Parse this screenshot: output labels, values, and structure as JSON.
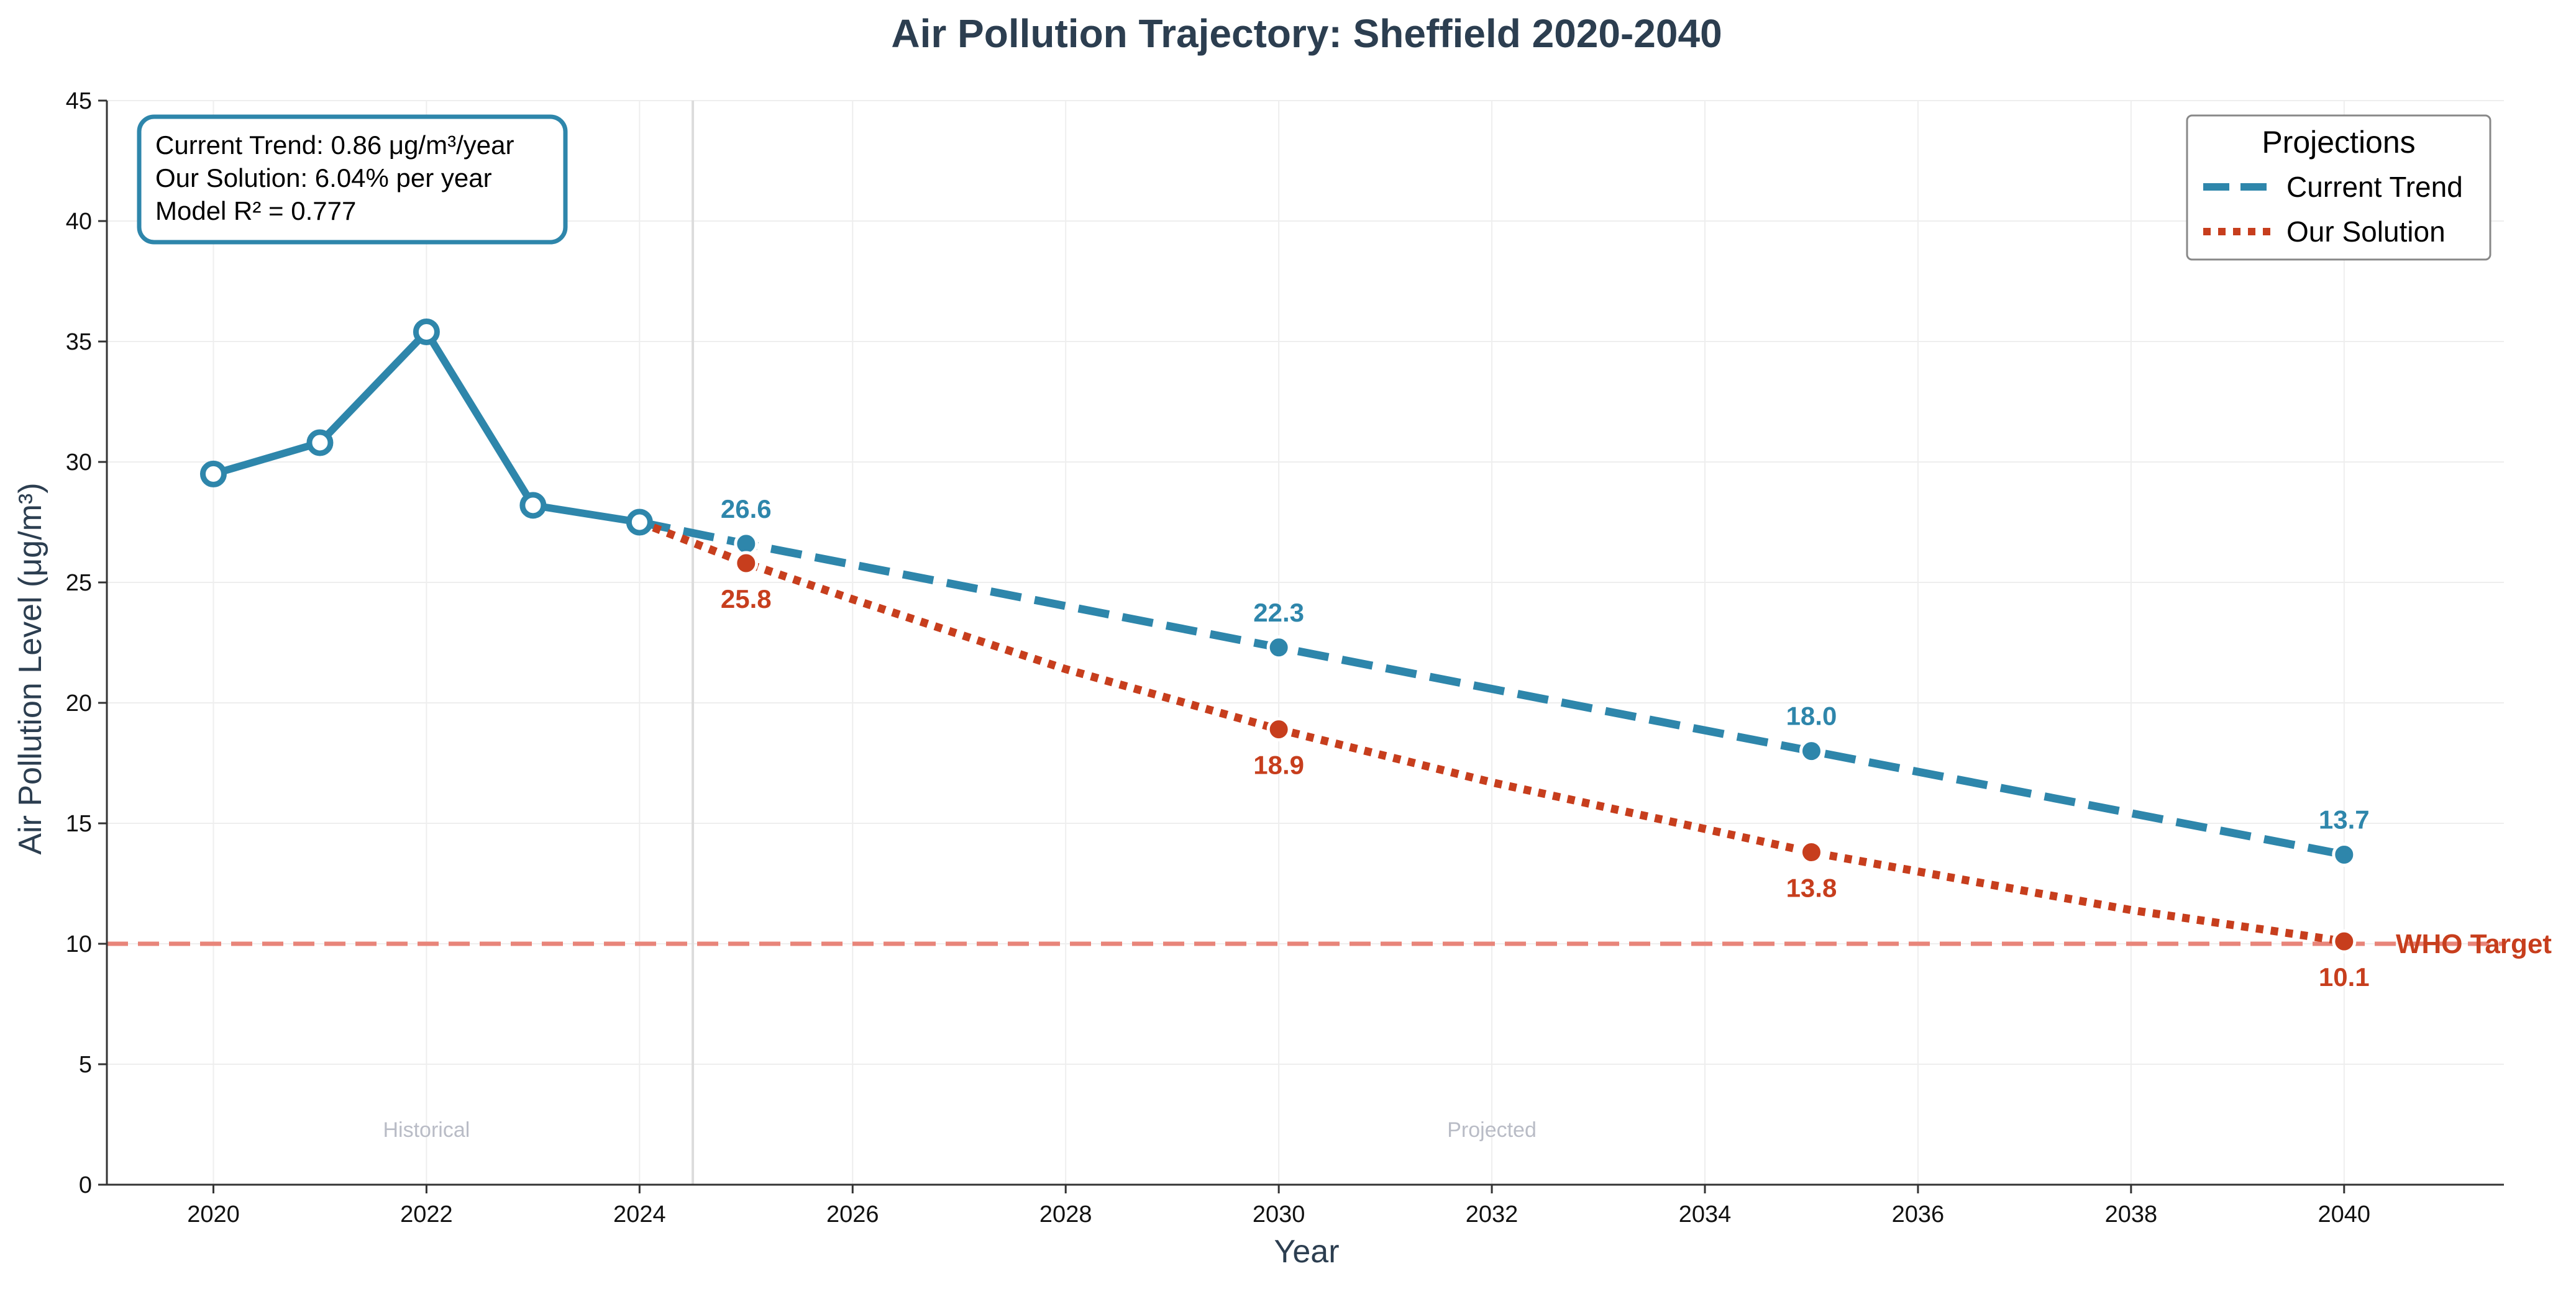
{
  "colors": {
    "current": "#2e86ab",
    "solution": "#c73e1d",
    "who": "#e8857a",
    "title": "#2c3e50",
    "axis": "#2c3e50",
    "grid": "#eeeeee",
    "divider": "#dcdcdc",
    "region": "#b9bcc6"
  },
  "info_box": {
    "line1": "Current Trend: 0.86 μg/m³/year",
    "line2": "Our Solution: 6.04% per year",
    "line3": "Model R² = 0.777"
  },
  "legend": {
    "title": "Projections",
    "items": [
      "Current Trend",
      "Our Solution"
    ]
  },
  "chart_data": {
    "type": "line",
    "title": "Air Pollution Trajectory: Sheffield 2020-2040",
    "xlabel": "Year",
    "ylabel": "Air Pollution Level (μg/m³)",
    "xlim": [
      2019,
      2041.5
    ],
    "ylim": [
      0,
      45
    ],
    "x_ticks": [
      2020,
      2022,
      2024,
      2026,
      2028,
      2030,
      2032,
      2034,
      2036,
      2038,
      2040
    ],
    "y_ticks": [
      0,
      5,
      10,
      15,
      20,
      25,
      30,
      35,
      40,
      45
    ],
    "grid": true,
    "legend_position": "top-right",
    "historical": {
      "x": [
        2020,
        2021,
        2022,
        2023,
        2024
      ],
      "y": [
        29.5,
        30.8,
        35.4,
        28.2,
        27.5
      ]
    },
    "series": [
      {
        "name": "Current Trend",
        "style": "dashed",
        "x": [
          2024,
          2025,
          2030,
          2035,
          2040
        ],
        "y": [
          27.5,
          26.6,
          22.3,
          18.0,
          13.7
        ],
        "markers": [
          {
            "x": 2025,
            "y": 26.6,
            "label": "26.6"
          },
          {
            "x": 2030,
            "y": 22.3,
            "label": "22.3"
          },
          {
            "x": 2035,
            "y": 18.0,
            "label": "18.0"
          },
          {
            "x": 2040,
            "y": 13.7,
            "label": "13.7"
          }
        ]
      },
      {
        "name": "Our Solution",
        "style": "dotted",
        "x": [
          2024,
          2025,
          2026,
          2028,
          2030,
          2032,
          2035,
          2038,
          2040
        ],
        "y": [
          27.5,
          25.8,
          24.3,
          21.4,
          18.9,
          16.7,
          13.8,
          11.4,
          10.1
        ],
        "markers": [
          {
            "x": 2025,
            "y": 25.8,
            "label": "25.8"
          },
          {
            "x": 2030,
            "y": 18.9,
            "label": "18.9"
          },
          {
            "x": 2035,
            "y": 13.8,
            "label": "13.8"
          },
          {
            "x": 2040,
            "y": 10.1,
            "label": "10.1"
          }
        ]
      }
    ],
    "reference_line": {
      "y": 10,
      "label": "WHO Target"
    },
    "divider_x": 2024.5,
    "regions": [
      {
        "label": "Historical",
        "x": 2022,
        "y": 2.3
      },
      {
        "label": "Projected",
        "x": 2032,
        "y": 2.3
      }
    ]
  }
}
